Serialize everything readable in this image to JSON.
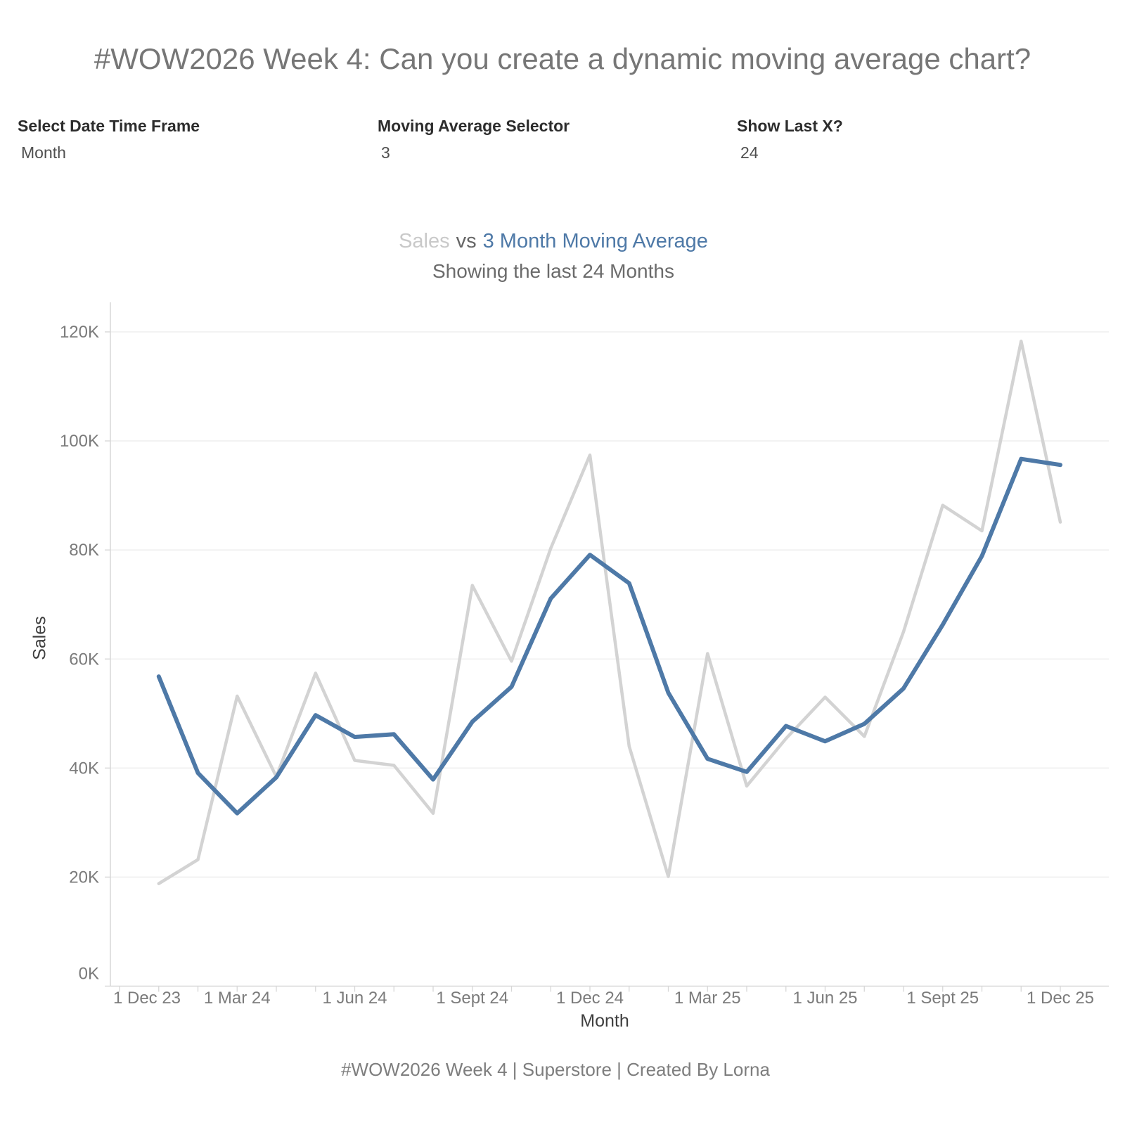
{
  "page_title": "#WOW2026 Week 4: Can you create a dynamic moving average chart?",
  "parameters": [
    {
      "label": "Select Date Time Frame",
      "value": "Month"
    },
    {
      "label": "Moving Average Selector",
      "value": "3"
    },
    {
      "label": "Show Last X?",
      "value": "24"
    }
  ],
  "chart_title": {
    "series1": "Sales",
    "separator": "vs",
    "series2": "3 Month Moving Average",
    "subtitle": "Showing the last 24 Months"
  },
  "footer": "#WOW2026 Week 4 | Superstore | Created By Lorna",
  "colors": {
    "sales_line": "#d3d3d3",
    "moving_average_line": "#4e79a7",
    "axis_line": "#d7d7d7",
    "gridline": "#efefef",
    "tick_label": "#7b7b7b"
  },
  "chart_data": {
    "type": "line",
    "title": "Sales vs 3 Month Moving Average",
    "subtitle": "Showing the last 24 Months",
    "xlabel": "Month",
    "ylabel": "Sales",
    "units": "USD thousands (K)",
    "ylim": [
      0,
      120
    ],
    "y_tick_labels": [
      "0K",
      "20K",
      "40K",
      "60K",
      "80K",
      "100K",
      "120K"
    ],
    "x_tick_labels": [
      "1 Dec 23",
      "1 Mar 24",
      "1 Jun 24",
      "1 Sept 24",
      "1 Dec 24",
      "1 Mar 25",
      "1 Jun 25",
      "1 Sept 25",
      "1 Dec 25"
    ],
    "x": [
      "Jan 24",
      "Feb 24",
      "Mar 24",
      "Apr 24",
      "May 24",
      "Jun 24",
      "Jul 24",
      "Aug 24",
      "Sep 24",
      "Oct 24",
      "Nov 24",
      "Dec 24",
      "Jan 25",
      "Feb 25",
      "Mar 25",
      "Apr 25",
      "May 25",
      "Jun 25",
      "Jul 25",
      "Aug 25",
      "Sep 25",
      "Oct 25",
      "Nov 25",
      "Dec 25"
    ],
    "series": [
      {
        "name": "Sales",
        "color": "#d3d3d3",
        "values": [
          18.8,
          23.2,
          53.2,
          38.4,
          57.4,
          41.4,
          40.5,
          31.7,
          73.5,
          59.6,
          80.3,
          97.4,
          44.0,
          20.1,
          61.0,
          36.7,
          45.4,
          53.0,
          45.8,
          65.0,
          88.2,
          83.5,
          118.3,
          85.1
        ]
      },
      {
        "name": "3 Month Moving Average",
        "color": "#4e79a7",
        "values": [
          56.8,
          39.1,
          31.7,
          38.3,
          49.7,
          45.7,
          46.2,
          37.9,
          48.5,
          54.9,
          71.1,
          79.1,
          73.9,
          53.8,
          41.7,
          39.3,
          47.7,
          44.9,
          48.1,
          54.6,
          66.3,
          78.9,
          96.7,
          95.6
        ]
      }
    ],
    "moving_average_window": 3,
    "legend_position": "in-title",
    "grid": "horizontal-only"
  }
}
